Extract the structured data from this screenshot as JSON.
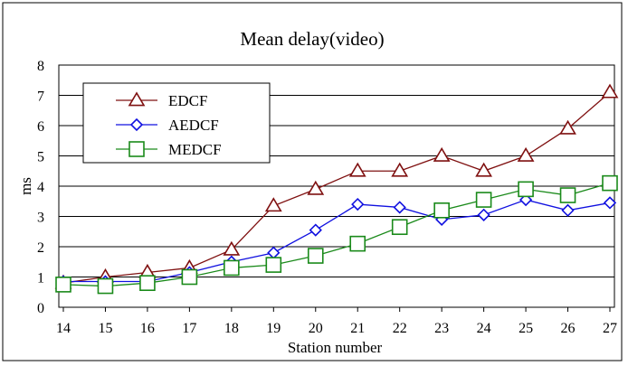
{
  "chart_data": {
    "type": "line",
    "title": "Mean delay(video)",
    "xlabel": "Station number",
    "ylabel": "ms",
    "x": [
      14,
      15,
      16,
      17,
      18,
      19,
      20,
      21,
      22,
      23,
      24,
      25,
      26,
      27
    ],
    "ylim": [
      0,
      8
    ],
    "yticks": [
      0,
      1,
      2,
      3,
      4,
      5,
      6,
      7,
      8
    ],
    "grid": "horizontal",
    "legend": "top-left",
    "series": [
      {
        "name": "EDCF",
        "color": "#7f1010",
        "marker": "triangle",
        "values": [
          0.8,
          1.0,
          1.15,
          1.3,
          1.9,
          3.35,
          3.9,
          4.5,
          4.5,
          5.0,
          4.5,
          5.0,
          5.9,
          7.1
        ]
      },
      {
        "name": "AEDCF",
        "color": "#1010e0",
        "marker": "diamond",
        "values": [
          0.85,
          0.85,
          0.85,
          1.15,
          1.5,
          1.8,
          2.55,
          3.4,
          3.3,
          2.9,
          3.05,
          3.55,
          3.2,
          3.45
        ]
      },
      {
        "name": "MEDCF",
        "color": "#1a8a1a",
        "marker": "square",
        "values": [
          0.75,
          0.7,
          0.8,
          1.0,
          1.3,
          1.4,
          1.7,
          2.1,
          2.65,
          3.2,
          3.55,
          3.9,
          3.7,
          4.1
        ]
      }
    ]
  }
}
